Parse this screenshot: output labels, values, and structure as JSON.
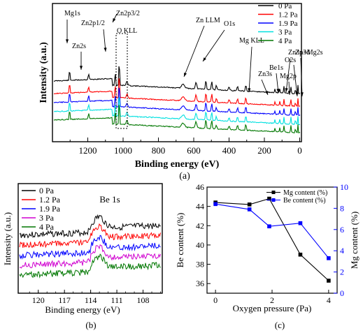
{
  "colors": {
    "0 Pa": "#000000",
    "1.2 Pa": "#ff0000",
    "1.9 Pa": "#0000ff",
    "3 Pa": "#00e0e0",
    "4 Pa": "#007700",
    "be_4pa": "#d000d0",
    "mg_content": "#000000",
    "be_content": "#0000ff"
  },
  "chart_data": [
    {
      "type": "line",
      "panel_label": "(a)",
      "xlabel": "Binding energy (eV)",
      "ylabel": "Intensity (a.u.)",
      "xlim": [
        1400,
        -10
      ],
      "x_ticks": [
        1200,
        1000,
        800,
        600,
        400,
        200,
        0
      ],
      "x_reversed": true,
      "legend": [
        "0 Pa",
        "1.2 Pa",
        "1.9 Pa",
        "3 Pa",
        "4 Pa"
      ],
      "legend_position": "top-right",
      "series": [
        {
          "name": "0 Pa"
        },
        {
          "name": "1.2 Pa"
        },
        {
          "name": "1.9 Pa"
        },
        {
          "name": "3 Pa"
        },
        {
          "name": "4 Pa"
        }
      ],
      "peaks": [
        {
          "label": "Mg1s",
          "x": 1303
        },
        {
          "label": "Zn2s",
          "x": 1195
        },
        {
          "label": "Zn2p1/2",
          "x": 1045
        },
        {
          "label": "Zn2p3/2",
          "x": 1022
        },
        {
          "label": "O KLL",
          "x": 978
        },
        {
          "label": "Zn LLM",
          "x": 587
        },
        {
          "label": "O1s",
          "x": 531
        },
        {
          "label": "Mg KLL",
          "x": 305
        },
        {
          "label": "Zn3p+Mg2s",
          "x": 89
        },
        {
          "label": "Be1s",
          "x": 113
        },
        {
          "label": "Zn3s",
          "x": 140
        },
        {
          "label": "Mg2p",
          "x": 50
        },
        {
          "label": "O2s",
          "x": 24
        },
        {
          "label": "Zn3d",
          "x": 10
        }
      ]
    },
    {
      "type": "line",
      "panel_label": "(b)",
      "title": "Be 1s",
      "xlabel": "Binding energy (eV)",
      "ylabel": "Intensity (a.u.)",
      "xlim": [
        122.3,
        105.8
      ],
      "x_ticks": [
        120,
        117,
        114,
        111,
        108
      ],
      "x_reversed": true,
      "legend": [
        "0 Pa",
        "1.2 Pa",
        "1.9 Pa",
        "3 Pa",
        "4 Pa"
      ],
      "legend_position": "top-left",
      "series": [
        {
          "name": "0 Pa"
        },
        {
          "name": "1.2 Pa"
        },
        {
          "name": "1.9 Pa"
        },
        {
          "name": "3 Pa"
        },
        {
          "name": "4 Pa"
        }
      ]
    },
    {
      "type": "line",
      "panel_label": "(c)",
      "xlabel": "Oxygen pressure (Pa)",
      "ylabel_left": "Be content (%)",
      "ylabel_right": "Mg content (%)",
      "xlim": [
        -0.3,
        4.3
      ],
      "x_ticks": [
        0,
        2,
        4
      ],
      "ylim_left": [
        35,
        46
      ],
      "y_ticks_left": [
        36,
        38,
        40,
        42,
        44,
        46
      ],
      "ylim_right": [
        0,
        10
      ],
      "y_ticks_right": [
        0,
        2,
        4,
        6,
        8,
        10
      ],
      "legend_position": "top-right",
      "series": [
        {
          "name": "Mg content (%)",
          "axis": "left",
          "marker": "square",
          "x": [
            0,
            1.2,
            1.9,
            3,
            4
          ],
          "y": [
            44.4,
            44.2,
            44.8,
            39.0,
            36.3
          ]
        },
        {
          "name": "Be content (%)",
          "axis": "right",
          "marker": "square",
          "x": [
            0,
            1.2,
            1.9,
            3,
            4
          ],
          "y": [
            8.4,
            7.9,
            6.3,
            6.6,
            3.3
          ]
        }
      ]
    }
  ]
}
